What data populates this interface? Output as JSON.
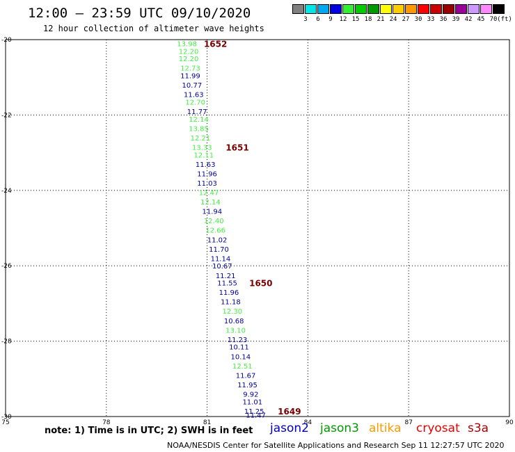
{
  "title": "12:00 – 23:59 UTC 09/10/2020",
  "subtitle": "12 hour collection of altimeter wave heights",
  "legend": {
    "unit": "(ft)",
    "bins": [
      {
        "label": "3",
        "color": "#808080"
      },
      {
        "label": "6",
        "color": "#00e5e5"
      },
      {
        "label": "9",
        "color": "#00a8f0"
      },
      {
        "label": "12",
        "color": "#0000e0"
      },
      {
        "label": "15",
        "color": "#33ee33"
      },
      {
        "label": "18",
        "color": "#00cc00"
      },
      {
        "label": "21",
        "color": "#009900"
      },
      {
        "label": "24",
        "color": "#ffff00"
      },
      {
        "label": "27",
        "color": "#ffcc00"
      },
      {
        "label": "30",
        "color": "#ff9900"
      },
      {
        "label": "33",
        "color": "#ff0000"
      },
      {
        "label": "36",
        "color": "#cc0000"
      },
      {
        "label": "39",
        "color": "#990000"
      },
      {
        "label": "42",
        "color": "#990099"
      },
      {
        "label": "45",
        "color": "#cc99ff"
      },
      {
        "label": "70",
        "color": "#ff88ff"
      },
      {
        "label": "",
        "color": "#000000"
      }
    ]
  },
  "note": "note:  1) Time is in UTC; 2) SWH is in feet",
  "satellites": [
    {
      "name": "jason2",
      "color": "#0000cc"
    },
    {
      "name": "jason3",
      "color": "#009900"
    },
    {
      "name": "altika",
      "color": "#ff9900"
    },
    {
      "name": "cryosat",
      "color": "#ee0000"
    },
    {
      "name": "s3a",
      "color": "#aa0000"
    }
  ],
  "footer": "NOAA/NESDIS Center for Satellite Applications and Research    Sep 11 12:27:57 UTC 2020",
  "chart_data": {
    "type": "scatter",
    "xlim": [
      75,
      90
    ],
    "ylim": [
      -30,
      -20
    ],
    "xticks": [
      "75",
      "78",
      "81",
      "84",
      "87",
      "90"
    ],
    "yticks": [
      "-20",
      "-22",
      "-24",
      "-26",
      "-28",
      "-30"
    ],
    "grid": true,
    "time_labels": [
      {
        "text": "1652",
        "x": 81.25,
        "y": -20.1,
        "color": "#770000"
      },
      {
        "text": "1651",
        "x": 81.9,
        "y": -22.85,
        "color": "#770000"
      },
      {
        "text": "1650",
        "x": 82.6,
        "y": -26.45,
        "color": "#770000"
      },
      {
        "text": "1649",
        "x": 83.45,
        "y": -29.85,
        "color": "#770000"
      }
    ],
    "points": [
      {
        "x": 80.4,
        "y": -20.1,
        "v": "13.98",
        "c": "#44ee44"
      },
      {
        "x": 80.45,
        "y": -20.3,
        "v": "12.20",
        "c": "#44ee44"
      },
      {
        "x": 80.45,
        "y": -20.5,
        "v": "12.20",
        "c": "#44ee44"
      },
      {
        "x": 80.5,
        "y": -20.75,
        "v": "12.73",
        "c": "#44ee44"
      },
      {
        "x": 80.5,
        "y": -20.95,
        "v": "11.99",
        "c": "#000099"
      },
      {
        "x": 80.55,
        "y": -21.2,
        "v": "10.77",
        "c": "#000099"
      },
      {
        "x": 80.6,
        "y": -21.45,
        "v": "11.63",
        "c": "#000099"
      },
      {
        "x": 80.65,
        "y": -21.65,
        "v": "12.70",
        "c": "#44ee44"
      },
      {
        "x": 80.7,
        "y": -21.9,
        "v": "11.77",
        "c": "#000099"
      },
      {
        "x": 80.75,
        "y": -22.1,
        "v": "12.14",
        "c": "#44ee44"
      },
      {
        "x": 80.75,
        "y": -22.35,
        "v": "13.85",
        "c": "#44ee44"
      },
      {
        "x": 80.8,
        "y": -22.6,
        "v": "12.21",
        "c": "#44ee44"
      },
      {
        "x": 80.85,
        "y": -22.85,
        "v": "13.33",
        "c": "#44ee44"
      },
      {
        "x": 80.9,
        "y": -23.05,
        "v": "12.11",
        "c": "#44ee44"
      },
      {
        "x": 80.95,
        "y": -23.3,
        "v": "11.63",
        "c": "#000099"
      },
      {
        "x": 81.0,
        "y": -23.55,
        "v": "11.96",
        "c": "#000099"
      },
      {
        "x": 81.0,
        "y": -23.8,
        "v": "11.03",
        "c": "#000099"
      },
      {
        "x": 81.05,
        "y": -24.05,
        "v": "12.47",
        "c": "#44ee44"
      },
      {
        "x": 81.1,
        "y": -24.3,
        "v": "12.14",
        "c": "#44ee44"
      },
      {
        "x": 81.15,
        "y": -24.55,
        "v": "11.94",
        "c": "#000099"
      },
      {
        "x": 81.2,
        "y": -24.8,
        "v": "12.40",
        "c": "#44ee44"
      },
      {
        "x": 81.25,
        "y": -25.05,
        "v": "12.66",
        "c": "#44ee44"
      },
      {
        "x": 81.3,
        "y": -25.3,
        "v": "11.02",
        "c": "#000099"
      },
      {
        "x": 81.35,
        "y": -25.55,
        "v": "11.70",
        "c": "#000099"
      },
      {
        "x": 81.4,
        "y": -25.8,
        "v": "11.14",
        "c": "#000099"
      },
      {
        "x": 81.45,
        "y": -26.0,
        "v": "10.67",
        "c": "#000099"
      },
      {
        "x": 81.55,
        "y": -26.25,
        "v": "11.21",
        "c": "#000099"
      },
      {
        "x": 81.6,
        "y": -26.45,
        "v": "11.55",
        "c": "#000099"
      },
      {
        "x": 81.65,
        "y": -26.7,
        "v": "11.96",
        "c": "#000099"
      },
      {
        "x": 81.7,
        "y": -26.95,
        "v": "11.18",
        "c": "#000099"
      },
      {
        "x": 81.75,
        "y": -27.2,
        "v": "12.30",
        "c": "#44ee44"
      },
      {
        "x": 81.8,
        "y": -27.45,
        "v": "10.68",
        "c": "#000099"
      },
      {
        "x": 81.85,
        "y": -27.7,
        "v": "13.10",
        "c": "#44ee44"
      },
      {
        "x": 81.9,
        "y": -27.95,
        "v": "11.23",
        "c": "#000099"
      },
      {
        "x": 81.95,
        "y": -28.15,
        "v": "10.11",
        "c": "#000099"
      },
      {
        "x": 82.0,
        "y": -28.4,
        "v": "10.14",
        "c": "#000099"
      },
      {
        "x": 82.05,
        "y": -28.65,
        "v": "12.51",
        "c": "#44ee44"
      },
      {
        "x": 82.15,
        "y": -28.9,
        "v": "11.67",
        "c": "#000099"
      },
      {
        "x": 82.2,
        "y": -29.15,
        "v": "11.95",
        "c": "#000099"
      },
      {
        "x": 82.3,
        "y": -29.4,
        "v": "9.92",
        "c": "#000099"
      },
      {
        "x": 82.35,
        "y": -29.6,
        "v": "11.01",
        "c": "#000099"
      },
      {
        "x": 82.4,
        "y": -29.85,
        "v": "11.25",
        "c": "#000099"
      },
      {
        "x": 82.45,
        "y": -29.95,
        "v": "11.47",
        "c": "#000099"
      }
    ]
  }
}
